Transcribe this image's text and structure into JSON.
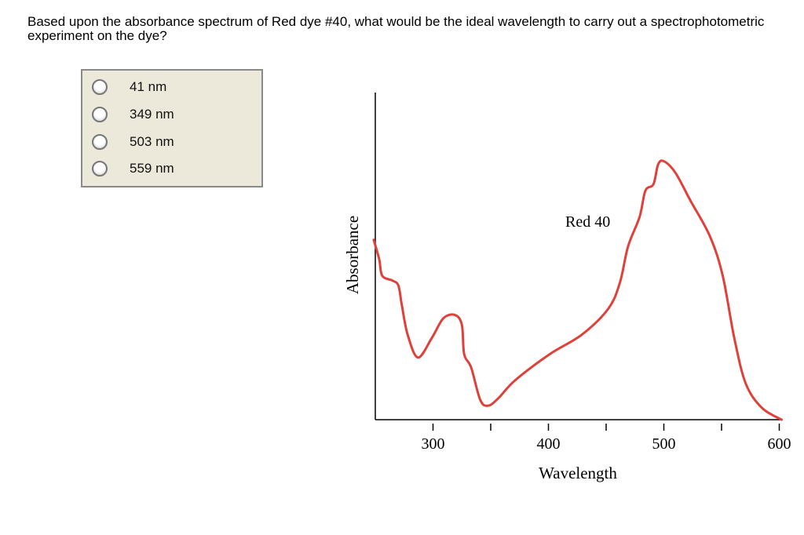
{
  "question": "Based upon the absorbance spectrum of Red dye #40, what would be the ideal wavelength to carry out a spectrophotometric experiment on the dye?",
  "options": [
    {
      "label": "41 nm"
    },
    {
      "label": "349 nm"
    },
    {
      "label": "503 nm"
    },
    {
      "label": "559 nm"
    }
  ],
  "chart_data": {
    "type": "line",
    "xlabel": "Wavelength",
    "ylabel": "Absorbance",
    "annotation": "Red 40",
    "xlim": [
      250,
      600
    ],
    "ylim": [
      0,
      1
    ],
    "xticks": [
      300,
      350,
      400,
      450,
      500,
      550,
      600
    ],
    "xtick_labels": [
      "300",
      "400",
      "500",
      "600"
    ],
    "grid": false,
    "color": "#e0403a",
    "series": [
      {
        "x": [
          248.6,
          253.4,
          256,
          265,
          270,
          273,
          278,
          287,
          299,
          309,
          319,
          325,
          327,
          333,
          341,
          348,
          357,
          371,
          401,
          429,
          452,
          462,
          469,
          479,
          484,
          491,
          495,
          500,
          510,
          523,
          540,
          551,
          561,
          571,
          585,
          602
        ],
        "y": [
          0.55,
          0.49,
          0.44,
          0.425,
          0.41,
          0.35,
          0.26,
          0.19,
          0.25,
          0.31,
          0.32,
          0.29,
          0.2,
          0.16,
          0.06,
          0.043,
          0.067,
          0.12,
          0.2,
          0.26,
          0.34,
          0.42,
          0.53,
          0.62,
          0.7,
          0.72,
          0.78,
          0.79,
          0.755,
          0.67,
          0.56,
          0.44,
          0.25,
          0.11,
          0.036,
          0
        ]
      }
    ]
  }
}
